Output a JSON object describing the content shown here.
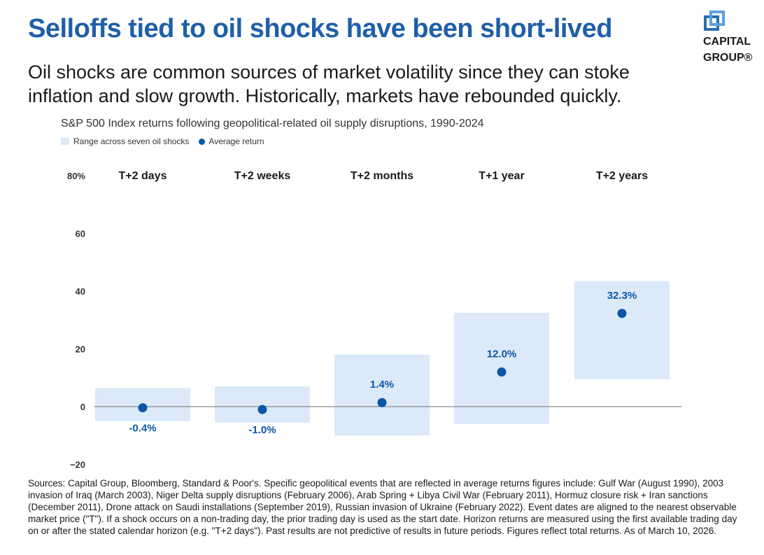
{
  "header": {
    "title": "Selloffs tied to oil shocks have been short-lived",
    "subtitle": "Oil shocks are common sources of market volatility since they can stoke inflation and slow growth. Historically, markets have rebounded quickly.",
    "logo_line1": "CAPITAL",
    "logo_line2": "GROUP®"
  },
  "colors": {
    "title": "#1f5fa8",
    "range_fill": "#dbe9f9",
    "dot": "#0b56a8",
    "label": "#0b56a8",
    "zero_line": "#8c8c8c",
    "logo": "#2b6cb0"
  },
  "chart_data": {
    "type": "scatter",
    "title": "S&P 500 Index returns following geopolitical-related oil supply disruptions, 1990-2024",
    "legend": [
      "Range across seven oil shocks",
      "Average return"
    ],
    "legend_placement": "top-left",
    "categories": [
      "T+2 days",
      "T+2 weeks",
      "T+2 months",
      "T+1 year",
      "T+2 years"
    ],
    "series": [
      {
        "name": "Average return",
        "values": [
          -0.4,
          -1.0,
          1.4,
          12.0,
          32.3
        ],
        "labels": [
          "-0.4%",
          "-1.0%",
          "1.4%",
          "12.0%",
          "32.3%"
        ]
      }
    ],
    "ranges": [
      [
        -5.0,
        6.5
      ],
      [
        -5.5,
        7.0
      ],
      [
        -10.0,
        18.0
      ],
      [
        -6.0,
        32.5
      ],
      [
        9.5,
        43.5
      ]
    ],
    "ylim": [
      -20,
      80
    ],
    "yticks": [
      -20,
      0,
      20,
      40,
      60,
      80
    ],
    "ytick_labels": [
      "−20",
      "0",
      "20",
      "40",
      "60",
      "80%"
    ],
    "grid": false
  },
  "footnote": "Sources: Capital Group, Bloomberg, Standard & Poor's. Specific geopolitical events that are reflected in average returns figures include: Gulf War (August 1990), 2003 invasion of Iraq (March 2003), Niger Delta supply disruptions (February 2006), Arab Spring + Libya Civil War (February 2011), Hormuz closure risk + Iran sanctions (December 2011), Drone attack on Saudi installations (September 2019), Russian invasion of Ukraine (February 2022). Event dates are aligned to the nearest observable market price (\"T\"). If a shock occurs on a non-trading day, the prior trading day is used as the start date. Horizon returns are measured using the first available trading day on or after the stated calendar horizon (e.g. \"T+2 days\"). Past results are not predictive of results in future periods. Figures reflect total returns. As of March 10, 2026."
}
